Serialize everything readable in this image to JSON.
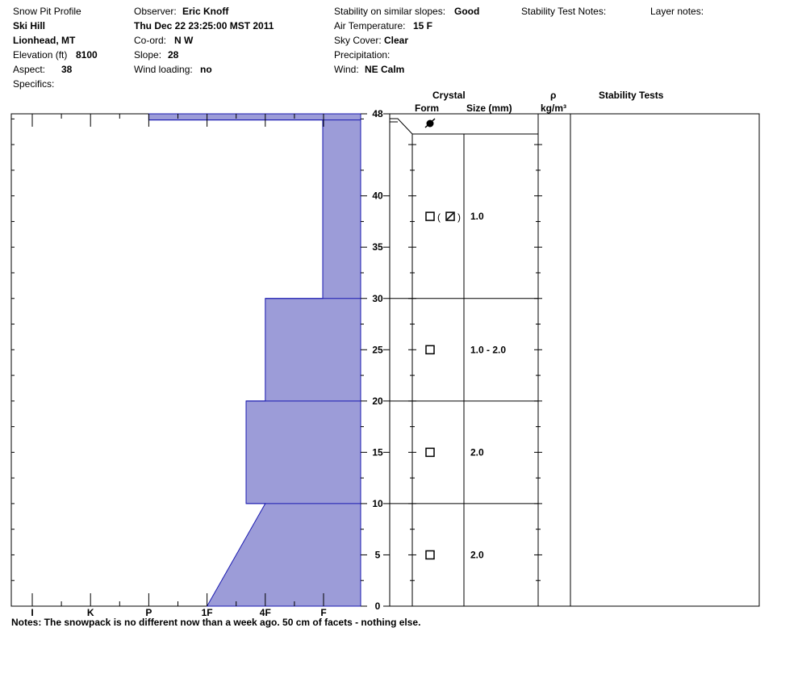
{
  "header": {
    "profile_title": "Snow Pit Profile",
    "location_name": "Ski Hill",
    "region": "Lionhead, MT",
    "elevation_label": "Elevation (ft)",
    "elevation_value": "8100",
    "aspect_label": "Aspect:",
    "aspect_value": "38",
    "specifics_label": "Specifics:",
    "observer_label": "Observer:",
    "observer_value": "Eric Knoff",
    "datetime": "Thu Dec 22 23:25:00 MST 2011",
    "coord_label": "Co-ord:",
    "coord_value": "N  W",
    "slope_label": "Slope:",
    "slope_value": "28",
    "wind_loading_label": "Wind loading:",
    "wind_loading_value": "no",
    "stability_label": "Stability on similar slopes:",
    "stability_value": "Good",
    "air_temp_label": "Air Temperature:",
    "air_temp_value": "15 F",
    "sky_label": "Sky Cover:",
    "sky_value": "Clear",
    "precip_label": "Precipitation:",
    "wind_label": "Wind:",
    "wind_value": "NE Calm",
    "stability_notes_label": "Stability Test Notes:",
    "layer_notes_label": "Layer notes:"
  },
  "columns": {
    "crystal": "Crystal",
    "form": "Form",
    "size": "Size (mm)",
    "rho": "ρ",
    "density_unit": "kg/m³",
    "stability_tests": "Stability Tests"
  },
  "notes": "Notes:  The snowpack is no different now than a week ago.  50 cm of facets  - nothing else.",
  "chart_data": {
    "type": "area",
    "xlabel": "",
    "ylabel": "",
    "hardness_scale": [
      "I",
      "K",
      "P",
      "1F",
      "4F",
      "F"
    ],
    "hardness_index": {
      "F": 1,
      "4F": 2,
      "1F": 3,
      "P": 4,
      "K": 5,
      "I": 6
    },
    "ylim": [
      0,
      48
    ],
    "y_ticks": [
      0,
      5,
      10,
      15,
      20,
      25,
      30,
      35,
      40,
      48
    ],
    "hardness_profile": [
      {
        "depth": 0,
        "hardness": 3
      },
      {
        "depth": 10,
        "hardness": 2
      },
      {
        "depth": 10,
        "hardness": 2.33
      },
      {
        "depth": 20,
        "hardness": 2.33
      },
      {
        "depth": 20,
        "hardness": 2
      },
      {
        "depth": 30,
        "hardness": 2
      },
      {
        "depth": 30,
        "hardness": 1
      },
      {
        "depth": 47.4,
        "hardness": 1
      },
      {
        "depth": 47.4,
        "hardness": 4
      },
      {
        "depth": 48,
        "hardness": 4
      }
    ],
    "layer_boundaries": [
      10,
      20,
      30,
      46
    ],
    "layers": [
      {
        "top": 48,
        "bottom": 46,
        "form": "surface-hoar",
        "size": ""
      },
      {
        "top": 46,
        "bottom": 30,
        "form": "faceted-mixed",
        "size": "1.0"
      },
      {
        "top": 30,
        "bottom": 20,
        "form": "faceted",
        "size": "1.0 - 2.0"
      },
      {
        "top": 20,
        "bottom": 10,
        "form": "faceted",
        "size": "2.0"
      },
      {
        "top": 10,
        "bottom": 0,
        "form": "faceted",
        "size": "2.0"
      }
    ],
    "fill_color": "#9C9CD8",
    "line_color": "#1A1AB0"
  }
}
